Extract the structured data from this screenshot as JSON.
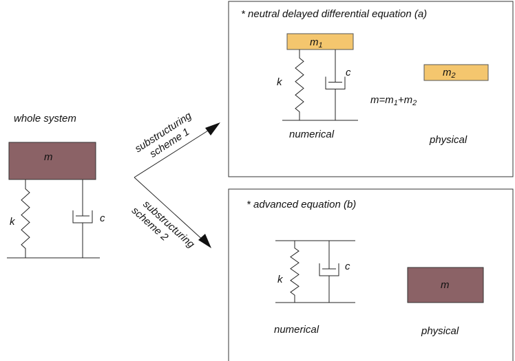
{
  "whole_system": {
    "title": "whole system",
    "mass": "m",
    "spring": "k",
    "damper": "c"
  },
  "scheme_1": [
    "substructuring",
    "scheme 1"
  ],
  "scheme_2": [
    "substructuring",
    "scheme 2"
  ],
  "panel_a": {
    "title": "* neutral delayed differential equation (a)",
    "mass_1": {
      "base": "m",
      "sub": "1"
    },
    "spring": "k",
    "damper": "c",
    "mass_2": {
      "base": "m",
      "sub": "2"
    },
    "relation": [
      "m=m",
      "1",
      "+m",
      "2"
    ],
    "numerical_label": "numerical",
    "physical_label": "physical"
  },
  "panel_b": {
    "title": "* advanced equation (b)",
    "spring": "k",
    "damper": "c",
    "mass": "m",
    "numerical_label": "numerical",
    "physical_label": "physical"
  }
}
